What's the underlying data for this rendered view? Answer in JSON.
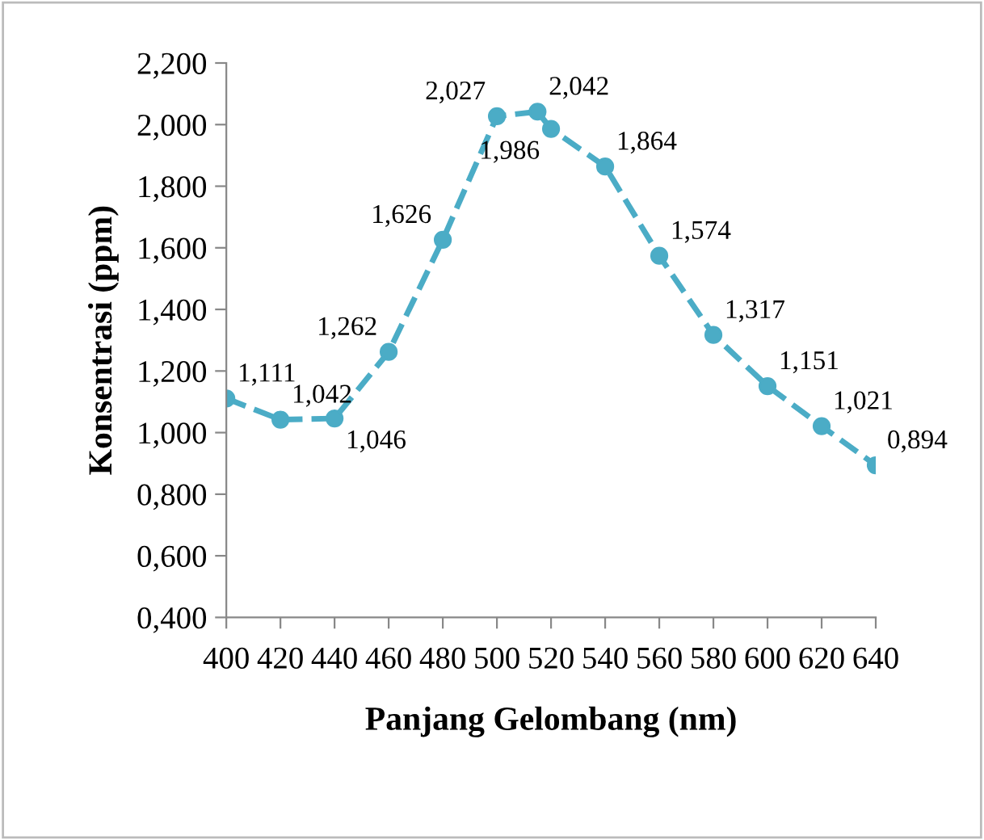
{
  "chart_data": {
    "type": "line",
    "xlabel": "Panjang Gelombang (nm)",
    "ylabel": "Konsentrasi (ppm)",
    "x": [
      400,
      420,
      440,
      460,
      480,
      500,
      515,
      520,
      540,
      560,
      580,
      600,
      620,
      640
    ],
    "series": [
      {
        "color": "#4bacc6",
        "values": [
          1.111,
          1.042,
          1.046,
          1.262,
          1.626,
          2.027,
          2.042,
          1.986,
          1.864,
          1.574,
          1.317,
          1.151,
          1.021,
          0.894
        ],
        "value_labels": [
          "1,111",
          "1,042",
          "1,046",
          "1,262",
          "1,626",
          "2,027",
          "2,042",
          "1,986",
          "1,864",
          "1,574",
          "1,317",
          "1,151",
          "1,021",
          "0,894"
        ]
      }
    ],
    "xlim": [
      400,
      640
    ],
    "xticks": [
      400,
      420,
      440,
      460,
      480,
      500,
      520,
      540,
      560,
      580,
      600,
      620,
      640
    ],
    "ylim": [
      0.4,
      2.2
    ],
    "yticks": [
      {
        "value": 0.4,
        "label": "0,400"
      },
      {
        "value": 0.6,
        "label": "0,600"
      },
      {
        "value": 0.8,
        "label": "0,800"
      },
      {
        "value": 1.0,
        "label": "1,000"
      },
      {
        "value": 1.2,
        "label": "1,200"
      },
      {
        "value": 1.4,
        "label": "1,400"
      },
      {
        "value": 1.6,
        "label": "1,600"
      },
      {
        "value": 1.8,
        "label": "1,800"
      },
      {
        "value": 2.0,
        "label": "2,000"
      },
      {
        "value": 2.2,
        "label": "2,200"
      }
    ],
    "grid": false,
    "legend": false,
    "marker": "circle",
    "line_style": "dashed"
  }
}
